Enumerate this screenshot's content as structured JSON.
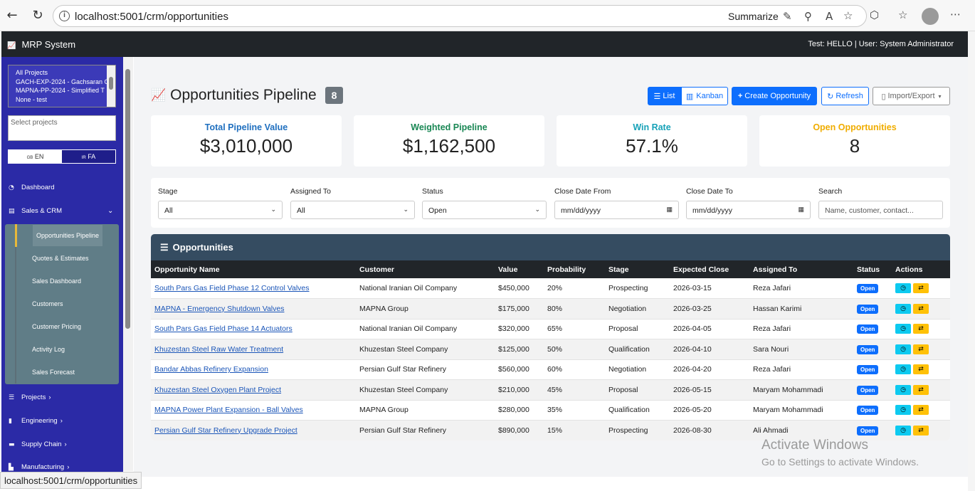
{
  "browser": {
    "url": "localhost:5001/crm/opportunities",
    "summarize_label": "Summarize",
    "status_url": "localhost:5001/crm/opportunities"
  },
  "app": {
    "brand": "MRP System",
    "user_info": "Test: HELLO | User: System Administrator"
  },
  "sidebar": {
    "projects": [
      "All Projects",
      "GACH-EXP-2024 - Gachsaran O",
      "MAPNA-PP-2024 - Simplified T",
      "None - test"
    ],
    "project_input_placeholder": "Select projects",
    "lang_en": "EN",
    "lang_fa": "FA",
    "lang_en_flag": "GB",
    "lang_fa_flag": "IR",
    "dashboard": "Dashboard",
    "sales_crm": "Sales & CRM",
    "sub_items": [
      "Opportunities Pipeline",
      "Quotes & Estimates",
      "Sales Dashboard",
      "Customers",
      "Customer Pricing",
      "Activity Log",
      "Sales Forecast"
    ],
    "projects_label": "Projects",
    "engineering": "Engineering",
    "supply_chain": "Supply Chain",
    "manufacturing": "Manufacturing"
  },
  "page": {
    "title": "Opportunities Pipeline",
    "count": "8",
    "list_btn": "List",
    "kanban_btn": "Kanban",
    "create_btn": "Create Opportunity",
    "refresh_btn": "Refresh",
    "import_btn": "Import/Export"
  },
  "stats": {
    "total_label": "Total Pipeline Value",
    "total_value": "$3,010,000",
    "weighted_label": "Weighted Pipeline",
    "weighted_value": "$1,162,500",
    "winrate_label": "Win Rate",
    "winrate_value": "57.1%",
    "open_label": "Open Opportunities",
    "open_value": "8",
    "colors": {
      "total": "#1f6fbf",
      "weighted": "#198754",
      "winrate": "#17a2b8",
      "open": "#f0ad00"
    }
  },
  "filters": {
    "stage_label": "Stage",
    "stage_value": "All",
    "assigned_label": "Assigned To",
    "assigned_value": "All",
    "status_label": "Status",
    "status_value": "Open",
    "from_label": "Close Date From",
    "from_value": "mm/dd/yyyy",
    "to_label": "Close Date To",
    "to_value": "mm/dd/yyyy",
    "search_label": "Search",
    "search_placeholder": "Name, customer, contact..."
  },
  "table": {
    "title": "Opportunities",
    "headers": [
      "Opportunity Name",
      "Customer",
      "Value",
      "Probability",
      "Stage",
      "Expected Close",
      "Assigned To",
      "Status",
      "Actions"
    ],
    "rows": [
      [
        "South Pars Gas Field Phase 12 Control Valves",
        "National Iranian Oil Company",
        "$450,000",
        "20%",
        "Prospecting",
        "2026-03-15",
        "Reza Jafari",
        "Open"
      ],
      [
        "MAPNA - Emergency Shutdown Valves",
        "MAPNA Group",
        "$175,000",
        "80%",
        "Negotiation",
        "2026-03-25",
        "Hassan Karimi",
        "Open"
      ],
      [
        "South Pars Gas Field Phase 14 Actuators",
        "National Iranian Oil Company",
        "$320,000",
        "65%",
        "Proposal",
        "2026-04-05",
        "Reza Jafari",
        "Open"
      ],
      [
        "Khuzestan Steel Raw Water Treatment",
        "Khuzestan Steel Company",
        "$125,000",
        "50%",
        "Qualification",
        "2026-04-10",
        "Sara Nouri",
        "Open"
      ],
      [
        "Bandar Abbas Refinery Expansion",
        "Persian Gulf Star Refinery",
        "$560,000",
        "60%",
        "Negotiation",
        "2026-04-20",
        "Reza Jafari",
        "Open"
      ],
      [
        "Khuzestan Steel Oxygen Plant Project",
        "Khuzestan Steel Company",
        "$210,000",
        "45%",
        "Proposal",
        "2026-05-15",
        "Maryam Mohammadi",
        "Open"
      ],
      [
        "MAPNA Power Plant Expansion - Ball Valves",
        "MAPNA Group",
        "$280,000",
        "35%",
        "Qualification",
        "2026-05-20",
        "Maryam Mohammadi",
        "Open"
      ],
      [
        "Persian Gulf Star Refinery Upgrade Project",
        "Persian Gulf Star Refinery",
        "$890,000",
        "15%",
        "Prospecting",
        "2026-08-30",
        "Ali Ahmadi",
        "Open"
      ]
    ]
  },
  "watermark": {
    "line1": "Activate Windows",
    "line2": "Go to Settings to activate Windows."
  }
}
